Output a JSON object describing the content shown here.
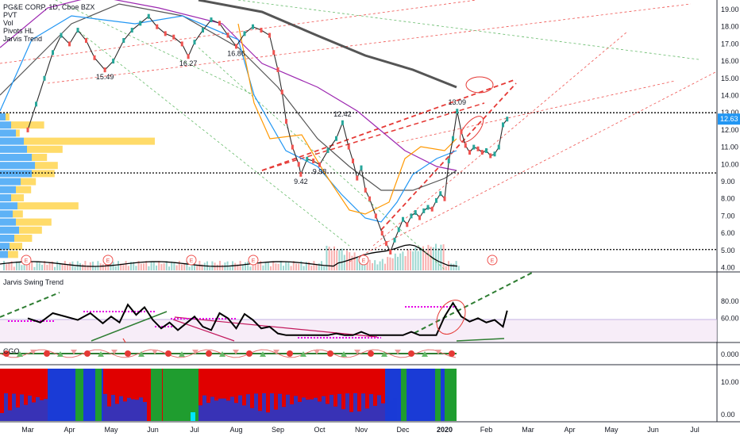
{
  "header": {
    "symbol": "PG&E CORP, 1D, Cboe BZX"
  },
  "indicators": [
    "PVT",
    "Vol",
    "Pivots HL",
    "Jarvis Trend"
  ],
  "panes": {
    "swing_title": "Jarvis Swing Trend",
    "cgo_title": "CGO"
  },
  "colors": {
    "up": "#26a69a",
    "down": "#ef5350",
    "price_label": "#2196f3",
    "ma_black": "#000000",
    "ma_purple": "#9c27b0",
    "ma_orange": "#ff9800",
    "ma_blue": "#2196f3",
    "ma_gray": "#555555",
    "swing": "#000000",
    "swing_magenta": "#e600e6",
    "vp_blue": "#42a5f5",
    "vp_yellow": "#ffd54f"
  },
  "chart_data": [
    {
      "type": "line",
      "title": "PG&E CORP, 1D, Cboe BZX",
      "x_ticks": [
        "Mar",
        "Apr",
        "May",
        "Jun",
        "Jul",
        "Aug",
        "Sep",
        "Oct",
        "Nov",
        "Dec",
        "2020",
        "Feb",
        "Mar",
        "Apr",
        "May",
        "Jun",
        "Jul"
      ],
      "y_ticks": [
        "19.00",
        "18.00",
        "17.00",
        "16.00",
        "15.00",
        "14.00",
        "13.00",
        "12.00",
        "11.00",
        "10.00",
        "9.00",
        "8.00",
        "7.00",
        "6.00",
        "5.00",
        "4.00"
      ],
      "ylim": [
        3.8,
        19.3
      ],
      "last_price": "12.63",
      "pivot_labels": [
        {
          "text": "15.49",
          "x": 1.85,
          "y": 15.49
        },
        {
          "text": "16.27",
          "x": 3.85,
          "y": 16.27
        },
        {
          "text": "16.86",
          "x": 5.0,
          "y": 16.86
        },
        {
          "text": "9.42",
          "x": 6.55,
          "y": 9.42
        },
        {
          "text": "9.98",
          "x": 7.0,
          "y": 9.98
        },
        {
          "text": "12.42",
          "x": 7.55,
          "y": 12.42
        },
        {
          "text": "13.09",
          "x": 10.3,
          "y": 13.09
        }
      ],
      "series": [
        {
          "x": [
            0,
            0.2,
            0.4,
            0.6,
            0.8,
            1.0,
            1.2,
            1.4,
            1.6,
            1.85,
            2.05,
            2.3,
            2.5,
            2.7,
            2.9,
            3.1,
            3.3,
            3.5,
            3.7,
            3.85,
            4.0,
            4.2,
            4.4,
            4.6,
            4.8,
            5.0,
            5.2,
            5.4,
            5.6,
            5.8,
            5.9,
            6.0,
            6.1,
            6.2,
            6.35,
            6.5,
            6.55,
            6.7,
            6.85,
            7.0,
            7.2,
            7.4,
            7.55,
            7.7,
            7.8,
            7.9,
            8.0,
            8.1,
            8.2,
            8.35,
            8.5,
            8.6,
            8.7,
            8.8,
            8.9,
            9.0,
            9.1,
            9.2,
            9.3,
            9.4,
            9.5,
            9.6,
            9.7,
            9.8,
            9.9,
            10.0,
            10.1,
            10.2,
            10.3,
            10.4,
            10.5,
            10.6,
            10.7,
            10.8,
            10.9,
            11.0,
            11.1,
            11.2,
            11.3,
            11.4,
            11.5
          ],
          "y": [
            12.0,
            13.5,
            15.0,
            16.5,
            17.5,
            17.0,
            17.8,
            17.2,
            16.2,
            15.49,
            16.0,
            17.2,
            17.8,
            18.2,
            18.6,
            18.0,
            17.6,
            17.4,
            17.0,
            16.27,
            17.1,
            17.8,
            18.4,
            18.2,
            17.5,
            16.86,
            17.6,
            18.0,
            17.8,
            17.5,
            16.5,
            15.5,
            14.2,
            12.5,
            11.0,
            10.0,
            9.42,
            10.3,
            10.2,
            9.98,
            10.8,
            11.5,
            12.42,
            11.0,
            10.2,
            9.2,
            9.8,
            8.5,
            8.0,
            7.0,
            6.0,
            5.4,
            4.9,
            5.6,
            6.2,
            6.8,
            6.5,
            7.0,
            7.2,
            6.9,
            7.3,
            7.5,
            7.4,
            7.9,
            8.3,
            8.0,
            10.2,
            11.5,
            13.09,
            11.9,
            11.1,
            10.7,
            11.0,
            10.9,
            10.7,
            10.8,
            10.5,
            10.6,
            11.0,
            12.3,
            12.63
          ]
        }
      ]
    },
    {
      "type": "line",
      "title": "Jarvis Swing Trend",
      "y_ticks": [
        "80.00",
        "60.00"
      ],
      "ylim": [
        40,
        95
      ],
      "series": [
        {
          "x": [
            0,
            0.3,
            0.6,
            0.9,
            1.2,
            1.5,
            1.8,
            2.0,
            2.2,
            2.4,
            2.6,
            2.8,
            3.0,
            3.2,
            3.4,
            3.6,
            3.8,
            4.0,
            4.2,
            4.4,
            4.6,
            4.8,
            5.0,
            5.2,
            5.4,
            5.6,
            5.8,
            6.0,
            6.2,
            6.4,
            6.6,
            6.8,
            7.0,
            7.2,
            7.4,
            7.6,
            7.8,
            8.0,
            8.2,
            8.4,
            8.6,
            8.8,
            9.0,
            9.2,
            9.4,
            9.6,
            9.8,
            10.0,
            10.2,
            10.4,
            10.6,
            10.8,
            11.0,
            11.2,
            11.4,
            11.5
          ],
          "y": [
            60,
            55,
            66,
            62,
            58,
            66,
            54,
            62,
            55,
            76,
            64,
            73,
            58,
            48,
            55,
            46,
            54,
            62,
            50,
            46,
            66,
            60,
            48,
            65,
            58,
            48,
            50,
            42,
            40,
            40,
            40,
            40,
            40,
            40,
            42,
            40,
            40,
            44,
            40,
            40,
            40,
            40,
            40,
            44,
            40,
            40,
            40,
            62,
            78,
            62,
            56,
            60,
            55,
            58,
            50,
            69
          ]
        }
      ]
    },
    {
      "type": "heatmap",
      "title": "",
      "y_ticks": [
        "10.00",
        "0.00"
      ],
      "ylim": [
        -1,
        18
      ]
    }
  ]
}
